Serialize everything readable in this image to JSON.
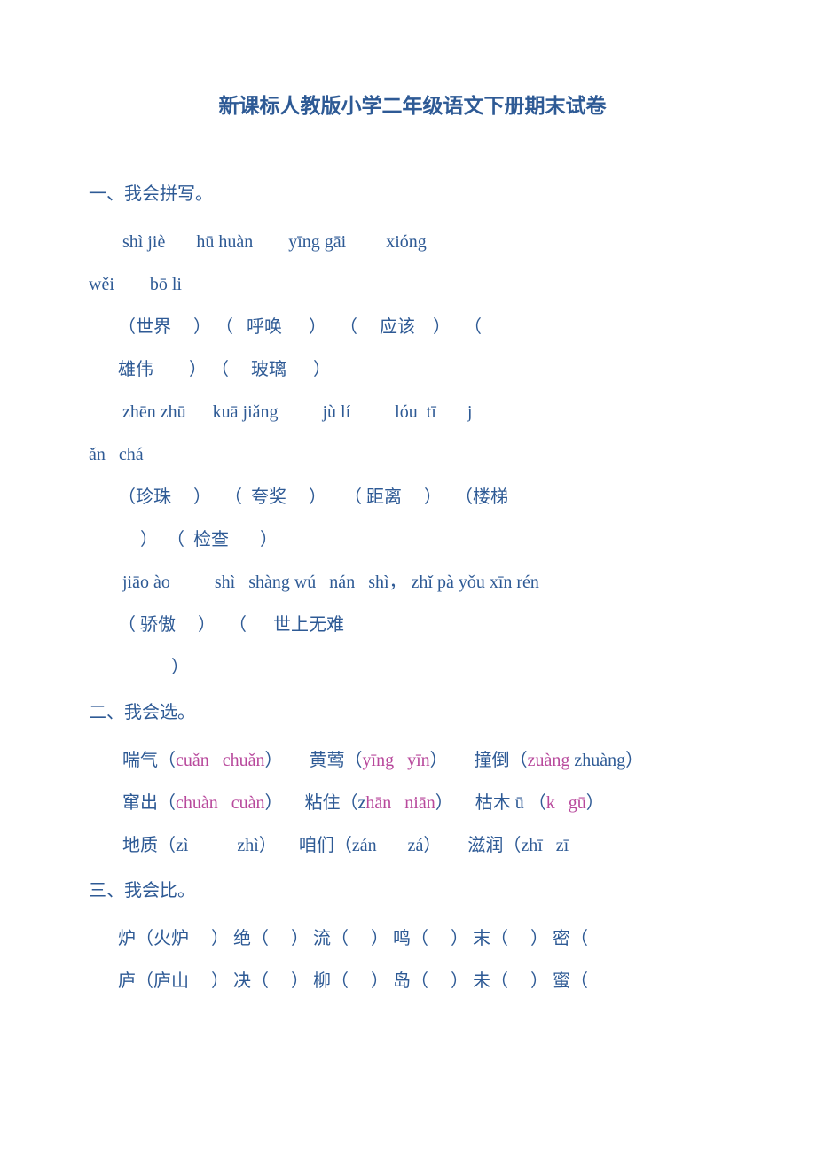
{
  "title": "新课标人教版小学二年级语文下册期末试卷",
  "sections": {
    "s1": {
      "head": "一、我会拼写。",
      "lines": [
        {
          "t": "  shì jiè       hū huàn        yīng gāi         xióng"
        },
        {
          "t": "wěi        bō li",
          "noindent": true
        },
        {
          "t": " （世界     ） （   呼唤      ）   （     应该    ）   （"
        },
        {
          "t": " 雄伟        ） （     玻璃      ）"
        },
        {
          "t": "  zhēn zhū      kuā jiǎng          jù lí          lóu  tī       j"
        },
        {
          "t": "ǎn   chá",
          "noindent": true
        },
        {
          "t": " （珍珠     ）   （  夸奖     ）    （ 距离     ）   （楼梯"
        },
        {
          "t": "      ）  （  检查       ）"
        },
        {
          "t": "  jiāo ào          shì   shàng wú   nán   shì， zhǐ pà yǒu xīn rén"
        },
        {
          "t": " （ 骄傲     ）   （      世上无难"
        },
        {
          "t": ""
        },
        {
          "t": "             ）"
        }
      ]
    },
    "s2": {
      "head": "二、我会选。",
      "lines": [
        {
          "pre": "  喘气（",
          "ans": "cuǎn   chuǎn",
          "post": "）      黄莺（"
        },
        {
          "ans2": "yīng   yīn",
          "post2": "）      撞倒（",
          "ans3": "zuàng",
          "post3": " zhuàng）"
        },
        {
          "pre": "  窜出（",
          "ans": "chuàn   cuàn",
          "post": "）     粘住（z"
        },
        {
          "ans2": "hān   niān",
          "post2": "）     枯木 ū （",
          "ans3": "k   gū",
          "post3": "）"
        },
        {
          "pre": "  地质（zì           zhì）     咱们（zán       zá）      滋润（zhī   zī"
        }
      ]
    },
    "s3": {
      "head": "三、我会比。",
      "lines": [
        {
          "pre": " 炉（火炉     ） 绝（     ） 流（     ） 鸣（     ） 末（     ） 密（"
        },
        {
          "pre": " 庐（庐山     ） 决（     ） 柳（     ） 岛（     ） 未（     ） 蜜（"
        }
      ]
    }
  }
}
